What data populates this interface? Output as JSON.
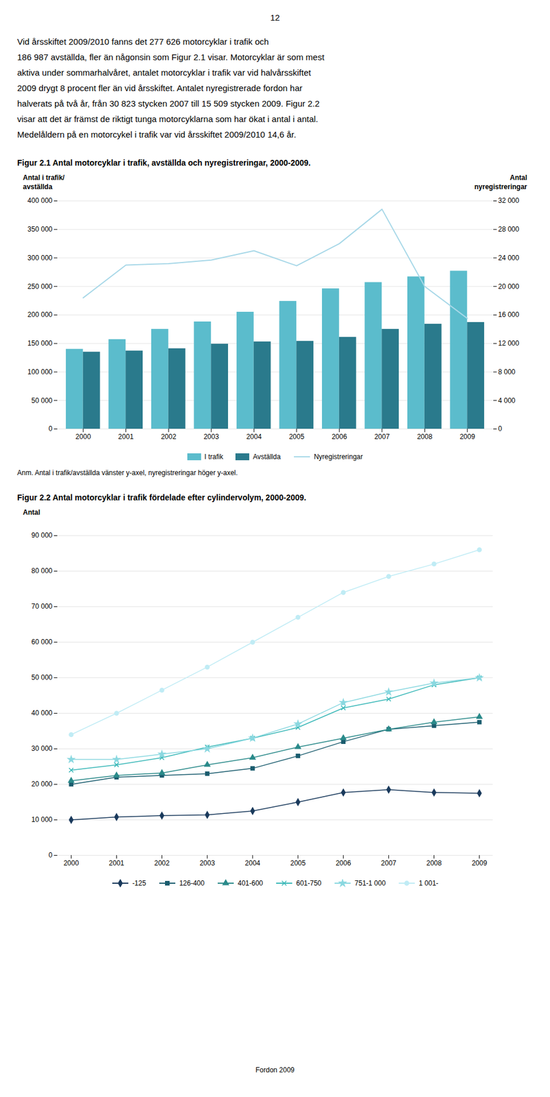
{
  "page_number": "12",
  "body_lines": [
    "Vid årsskiftet 2009/2010 fanns det 277 626 motorcyklar i trafik och",
    "186 987 avställda, fler än någonsin som Figur 2.1 visar. Motorcyklar är som mest",
    "aktiva under sommarhalvåret, antalet motorcyklar i trafik var vid halvårsskiftet",
    "2009 drygt 8 procent fler än vid årsskiftet. Antalet nyregistrerade fordon har",
    "halverats på två år, från 30 823 stycken 2007 till 15 509 stycken 2009. Figur 2.2",
    "visar att det är främst de riktigt tunga motorcyklarna som har ökat i antal i antal.",
    "Medelåldern på en motorcykel i trafik var vid årsskiftet 2009/2010 14,6 år."
  ],
  "footer": "Fordon 2009",
  "chart_data": [
    {
      "type": "bar",
      "title": "Figur 2.1 Antal motorcyklar i trafik, avställda och nyregistreringar, 2000-2009.",
      "ylabel": [
        "Antal i trafik/",
        "avställda"
      ],
      "y2label": [
        "Antal",
        "nyregistreringar"
      ],
      "categories": [
        "2000",
        "2001",
        "2002",
        "2003",
        "2004",
        "2005",
        "2006",
        "2007",
        "2008",
        "2009"
      ],
      "series": [
        {
          "name": "I trafik",
          "type": "bar",
          "color": "#5bbccc",
          "values": [
            140000,
            157000,
            175000,
            188000,
            205000,
            224000,
            246000,
            257000,
            267000,
            277000
          ]
        },
        {
          "name": "Avställda",
          "type": "bar",
          "color": "#2a7a8c",
          "values": [
            135000,
            137000,
            141000,
            149000,
            153000,
            154000,
            161000,
            175000,
            184000,
            187000
          ]
        },
        {
          "name": "Nyregistreringar",
          "type": "line",
          "axis": "y2",
          "color": "#a8d8e8",
          "values": [
            18400,
            23000,
            23200,
            23700,
            25000,
            22900,
            26000,
            30823,
            20000,
            15509
          ]
        }
      ],
      "ylim": [
        0,
        400000
      ],
      "yticks": [
        0,
        {
          "value": 50000,
          "label": "50 000"
        },
        {
          "value": 100000,
          "label": "100 000"
        },
        {
          "value": 150000,
          "label": "150 000"
        },
        {
          "value": 200000,
          "label": "200 000"
        },
        {
          "value": 250000,
          "label": "250 000"
        },
        {
          "value": 300000,
          "label": "300 000"
        },
        {
          "value": 350000,
          "label": "350 000"
        },
        {
          "value": 400000,
          "label": "400 000"
        }
      ],
      "y2lim": [
        0,
        32000
      ],
      "y2ticks": [
        0,
        {
          "value": 4000,
          "label": "4 000"
        },
        {
          "value": 8000,
          "label": "8 000"
        },
        {
          "value": 12000,
          "label": "12 000"
        },
        {
          "value": 16000,
          "label": "16 000"
        },
        {
          "value": 20000,
          "label": "20 000"
        },
        {
          "value": 24000,
          "label": "24 000"
        },
        {
          "value": 28000,
          "label": "28 000"
        },
        {
          "value": 32000,
          "label": "32 000"
        }
      ],
      "grid": true,
      "legend": "bottom",
      "annotation": "Anm. Antal i trafik/avställda vänster y-axel, nyregistreringar höger y-axel."
    },
    {
      "type": "line",
      "title": "Figur 2.2 Antal motorcyklar i trafik fördelade efter cylindervolym, 2000-2009.",
      "ylabel": [
        "Antal"
      ],
      "categories": [
        "2000",
        "2001",
        "2002",
        "2003",
        "2004",
        "2005",
        "2006",
        "2007",
        "2008",
        "2009"
      ],
      "series": [
        {
          "name": "-125",
          "color": "#1a3a5c",
          "marker": "diamond",
          "values": [
            10000,
            10800,
            11200,
            11400,
            12500,
            15000,
            17700,
            18500,
            17700,
            17500
          ]
        },
        {
          "name": "126-400",
          "color": "#1a5c6e",
          "marker": "square",
          "values": [
            20000,
            22000,
            22500,
            23000,
            24500,
            28000,
            32000,
            35500,
            36500,
            37500
          ]
        },
        {
          "name": "401-600",
          "color": "#2a8a8a",
          "marker": "triangle",
          "values": [
            21000,
            22500,
            23200,
            25500,
            27500,
            30500,
            33000,
            35500,
            37500,
            39000
          ]
        },
        {
          "name": "601-750",
          "color": "#3ab8b8",
          "marker": "times",
          "values": [
            24000,
            25500,
            27500,
            30500,
            33000,
            36000,
            41500,
            44000,
            48000,
            50000
          ]
        },
        {
          "name": "751-1 000",
          "color": "#8ad8e0",
          "marker": "star",
          "values": [
            27000,
            27000,
            28500,
            30000,
            33000,
            37000,
            43000,
            46000,
            48500,
            50000
          ]
        },
        {
          "name": "1 001-",
          "color": "#c0ecf5",
          "marker": "circle",
          "values": [
            34000,
            40000,
            46500,
            53000,
            60000,
            67000,
            74000,
            78500,
            82000,
            86000
          ]
        }
      ],
      "ylim": [
        0,
        90000
      ],
      "yticks": [
        0,
        {
          "value": 10000,
          "label": "10 000"
        },
        {
          "value": 20000,
          "label": "20 000"
        },
        {
          "value": 30000,
          "label": "30 000"
        },
        {
          "value": 40000,
          "label": "40 000"
        },
        {
          "value": 50000,
          "label": "50 000"
        },
        {
          "value": 60000,
          "label": "60 000"
        },
        {
          "value": 70000,
          "label": "70 000"
        },
        {
          "value": 80000,
          "label": "80 000"
        },
        {
          "value": 90000,
          "label": "90 000"
        }
      ],
      "grid": true,
      "legend": "bottom"
    }
  ]
}
